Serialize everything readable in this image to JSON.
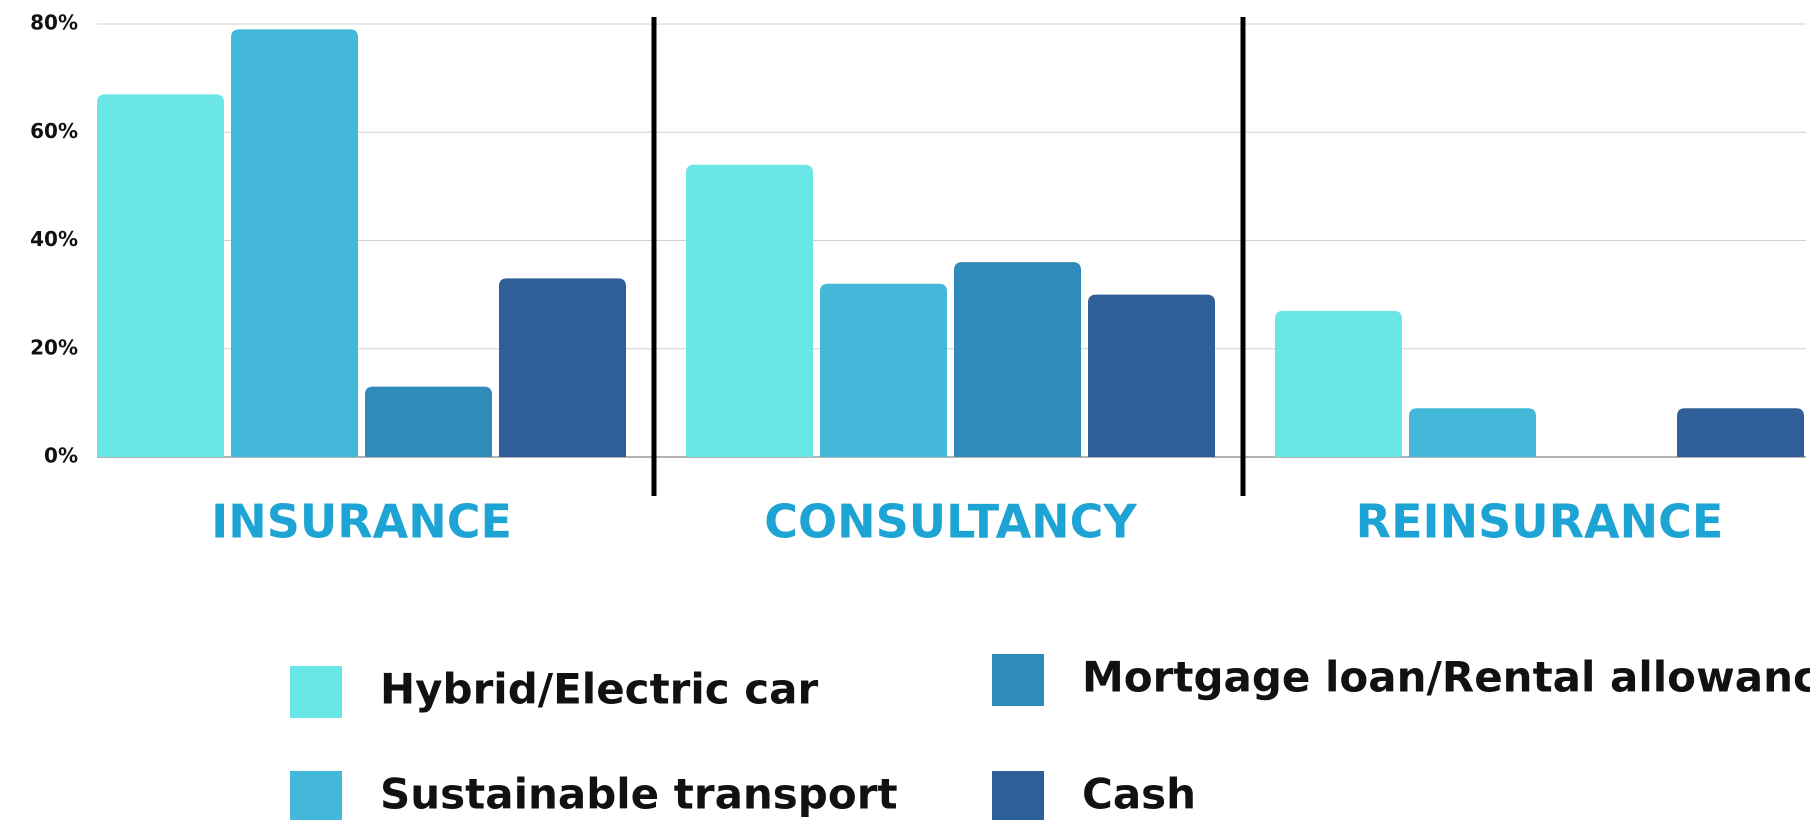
{
  "chart_data": {
    "type": "bar",
    "categories": [
      "INSURANCE",
      "CONSULTANCY",
      "REINSURANCE"
    ],
    "series": [
      {
        "name": "Hybrid/Electric car",
        "color": "#6be6e8",
        "values": [
          67,
          54,
          27
        ]
      },
      {
        "name": "Sustainable transport",
        "color": "#43b8d8",
        "values": [
          79,
          32,
          9
        ]
      },
      {
        "name": "Mortgage loan/Rental allowance",
        "color": "#2e8bba",
        "values": [
          13,
          36,
          0
        ]
      },
      {
        "name": "Cash",
        "color": "#2f5f98",
        "values": [
          33,
          30,
          9
        ]
      }
    ],
    "ylim": [
      0,
      80
    ],
    "yticks": [
      {
        "value": 0,
        "label": "0%"
      },
      {
        "value": 20,
        "label": "20%"
      },
      {
        "value": 40,
        "label": "40%"
      },
      {
        "value": 60,
        "label": "60%"
      },
      {
        "value": 80,
        "label": "80%"
      }
    ],
    "grid": true
  }
}
